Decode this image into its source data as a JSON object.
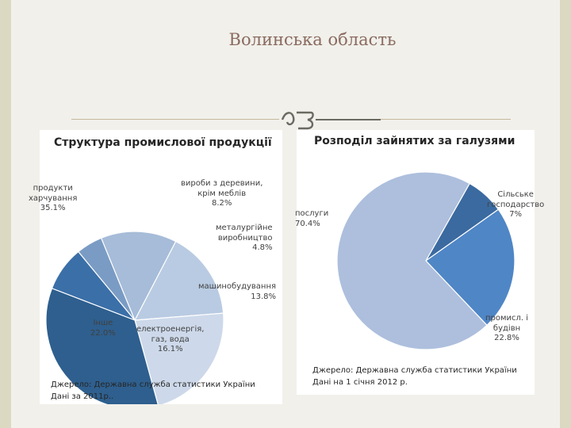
{
  "slide": {
    "title": "Волинська область",
    "accent": "#8a6a5f",
    "ornament": "ornament-icon"
  },
  "chart_data": [
    {
      "type": "pie",
      "title": "Структура промислової продукції",
      "categories": [
        "виробы з деревини, крім меблів",
        "металургійне виробництво",
        "машинобудування",
        "електроенергія, газ, вода",
        "Інше",
        "продукти харчування"
      ],
      "values": [
        8.2,
        4.8,
        13.8,
        16.1,
        22.0,
        35.1
      ],
      "colors": [
        "#3b6fa8",
        "#7a9cc4",
        "#a6bcd8",
        "#b9cbe2",
        "#cdd9ea",
        "#2e5f8e"
      ],
      "labels": [
        {
          "lines": [
            "вироби з деревини,",
            "крім меблів",
            "8.2%"
          ]
        },
        {
          "lines": [
            "металургійне",
            "виробництво",
            "4.8%"
          ]
        },
        {
          "lines": [
            "машинобудування",
            "13.8%"
          ]
        },
        {
          "lines": [
            "електроенергія,",
            "газ, вода",
            "16.1%"
          ]
        },
        {
          "lines": [
            "Інше",
            "22.0%"
          ]
        },
        {
          "lines": [
            "продукти",
            "харчування",
            "35.1%"
          ]
        }
      ],
      "source": [
        "Джерело: Державна служба статистики України",
        "Дані за 2011р.."
      ]
    },
    {
      "type": "pie",
      "title": "Розподіл зайнятих за галузями",
      "categories": [
        "Сільське господарство",
        "промисл. і будівн",
        "послуги"
      ],
      "values": [
        7,
        22.8,
        70.4
      ],
      "colors": [
        "#3b6aa0",
        "#4f86c6",
        "#adbfdd"
      ],
      "labels": [
        {
          "lines": [
            "Сільське",
            "господарство",
            "7%"
          ]
        },
        {
          "lines": [
            "промисл. і",
            "будівн",
            "22.8%"
          ]
        },
        {
          "lines": [
            "послуги",
            "70.4%"
          ]
        }
      ],
      "source": [
        "Джерело: Державна служба статистики України",
        "Дані на 1 січня 2012 р."
      ]
    }
  ]
}
